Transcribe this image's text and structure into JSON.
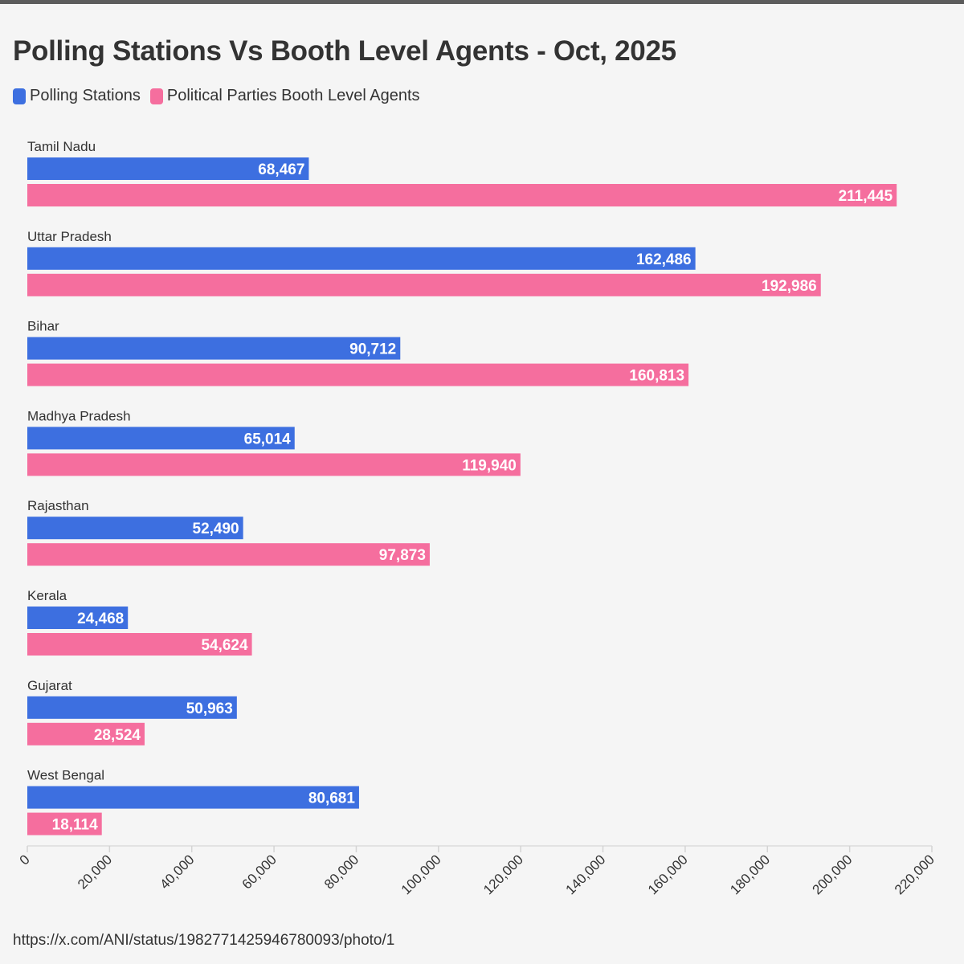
{
  "title": "Polling Stations Vs Booth Level Agents - Oct, 2025",
  "source": "https://x.com/ANI/status/1982771425946780093/photo/1",
  "colors": {
    "polling_stations": "#3d6fe0",
    "booth_level_agents": "#f56e9e",
    "text": "#333333",
    "axis": "#e2e2e2",
    "background": "#f5f5f5"
  },
  "legend": [
    {
      "label": "Polling Stations",
      "color": "#3d6fe0"
    },
    {
      "label": "Political Parties Booth Level Agents",
      "color": "#f56e9e"
    }
  ],
  "chart_data": {
    "type": "bar",
    "orientation": "horizontal",
    "title": "Polling Stations Vs Booth Level Agents - Oct, 2025",
    "categories": [
      "Tamil Nadu",
      "Uttar Pradesh",
      "Bihar",
      "Madhya Pradesh",
      "Rajasthan",
      "Kerala",
      "Gujarat",
      "West Bengal"
    ],
    "series": [
      {
        "name": "Polling Stations",
        "color": "#3d6fe0",
        "values": [
          68467,
          162486,
          90712,
          65014,
          52490,
          24468,
          50963,
          80681
        ]
      },
      {
        "name": "Political Parties Booth Level Agents",
        "color": "#f56e9e",
        "values": [
          211445,
          192986,
          160813,
          119940,
          97873,
          54624,
          28524,
          18114
        ]
      }
    ],
    "data_labels": [
      [
        "68,467",
        "162,486",
        "90,712",
        "65,014",
        "52,490",
        "24,468",
        "50,963",
        "80,681"
      ],
      [
        "211,445",
        "192,986",
        "160,813",
        "119,940",
        "97,873",
        "54,624",
        "28,524",
        "18,114"
      ]
    ],
    "xlim": [
      0,
      220000
    ],
    "xticks": [
      0,
      20000,
      40000,
      60000,
      80000,
      100000,
      120000,
      140000,
      160000,
      180000,
      200000,
      220000
    ],
    "xtick_labels": [
      "0",
      "20,000",
      "40,000",
      "60,000",
      "80,000",
      "100,000",
      "120,000",
      "140,000",
      "160,000",
      "180,000",
      "200,000",
      "220,000"
    ],
    "xlabel": "",
    "ylabel": "",
    "grid": false,
    "legend_position": "top-left"
  }
}
